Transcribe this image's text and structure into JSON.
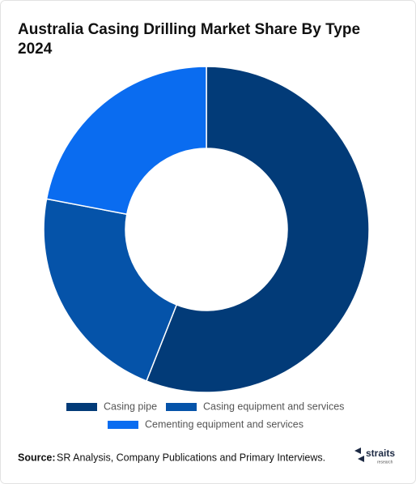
{
  "chart_data": {
    "type": "donut",
    "title_lines": [
      "Australia Casing Drilling Market Share By Type",
      "2024"
    ],
    "categories": [
      "Casing pipe",
      "Casing equipment and services",
      "Cementing equipment and services"
    ],
    "values": [
      56,
      22,
      22
    ],
    "colors": [
      "#023b78",
      "#0553a9",
      "#0a6cf0"
    ],
    "source_label": "Source:",
    "source": "SR Analysis, Company Publications and Primary Interviews.",
    "logo": [
      "straits",
      "research"
    ]
  }
}
